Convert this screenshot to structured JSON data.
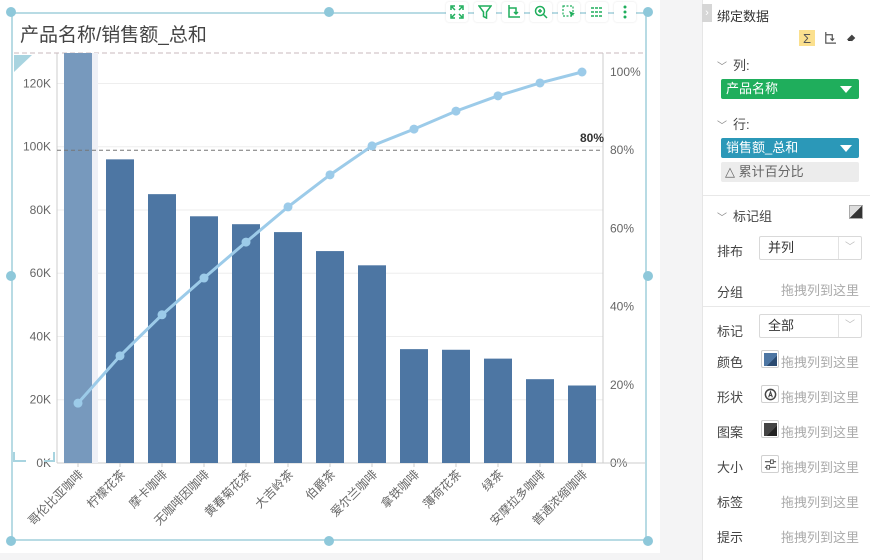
{
  "chart": {
    "title": "产品名称/销售额_总和",
    "toolbar": [
      {
        "name": "fullscreen-icon",
        "label": "全屏"
      },
      {
        "name": "filter-icon",
        "label": "过滤"
      },
      {
        "name": "swap-axes-icon",
        "label": "交换"
      },
      {
        "name": "zoom-in-icon",
        "label": "放大"
      },
      {
        "name": "select-icon",
        "label": "选择"
      },
      {
        "name": "list-icon",
        "label": "列表"
      },
      {
        "name": "more-icon",
        "label": "更多"
      }
    ],
    "reference_line_label": "80%",
    "colors": {
      "bar": "#4d76a3",
      "bar_highlight": "#7799bd",
      "line": "#9ccbe9",
      "selection": "#b8dbe4",
      "handle": "#8ec8da"
    }
  },
  "chart_data": {
    "type": "bar+line (pareto)",
    "title": "产品名称/销售额_总和",
    "xlabel": "产品名称",
    "ylabel": "销售额_总和",
    "y2label": "累计百分比",
    "categories": [
      "哥伦比亚咖啡",
      "柠檬花茶",
      "摩卡咖啡",
      "无咖啡因咖啡",
      "黄春菊花茶",
      "大吉岭茶",
      "伯爵茶",
      "爱尔兰咖啡",
      "拿铁咖啡",
      "薄荷花茶",
      "绿茶",
      "安摩拉多咖啡",
      "普通浓缩咖啡"
    ],
    "series": [
      {
        "name": "销售额_总和",
        "type": "bar",
        "axis": "left",
        "values": [
          130000,
          96000,
          85000,
          78000,
          75500,
          73000,
          67000,
          62500,
          36000,
          35800,
          33000,
          26500,
          24500
        ]
      },
      {
        "name": "累计百分比",
        "type": "line",
        "axis": "right",
        "values": [
          15.3,
          27.4,
          37.9,
          47.3,
          56.5,
          65.5,
          73.7,
          81.1,
          85.4,
          90.0,
          93.9,
          97.2,
          100.0
        ]
      }
    ],
    "y_ticks": [
      "0K",
      "20K",
      "40K",
      "60K",
      "80K",
      "100K",
      "120K"
    ],
    "y2_ticks": [
      "0%",
      "20%",
      "40%",
      "60%",
      "80%",
      "100%"
    ],
    "ylim": [
      0,
      124000
    ],
    "y2lim": [
      0,
      100
    ],
    "reference_lines": [
      {
        "axis": "right",
        "value": 80,
        "label": "80%"
      }
    ],
    "grid": true,
    "legend": "none"
  },
  "panel": {
    "title": "绑定数据",
    "icons": [
      "sigma-icon",
      "swap-icon",
      "eraser-icon"
    ],
    "columns_label": "列:",
    "columns_field": "产品名称",
    "columns_color": "#1fae5c",
    "rows_label": "行:",
    "rows_field": "销售额_总和",
    "rows_color": "#2b98b8",
    "rows_sub": "累计百分比",
    "marks_label": "标记组",
    "layout_label": "排布",
    "layout_value": "并列",
    "group_label": "分组",
    "mark_label": "标记",
    "mark_value": "全部",
    "drop_hint": "拖拽列到这里",
    "props": [
      {
        "label": "颜色",
        "icon": "color-swatch-icon"
      },
      {
        "label": "形状",
        "icon": "shape-icon"
      },
      {
        "label": "图案",
        "icon": "pattern-icon"
      },
      {
        "label": "大小",
        "icon": "size-icon"
      },
      {
        "label": "标签",
        "icon": ""
      },
      {
        "label": "提示",
        "icon": ""
      }
    ]
  }
}
